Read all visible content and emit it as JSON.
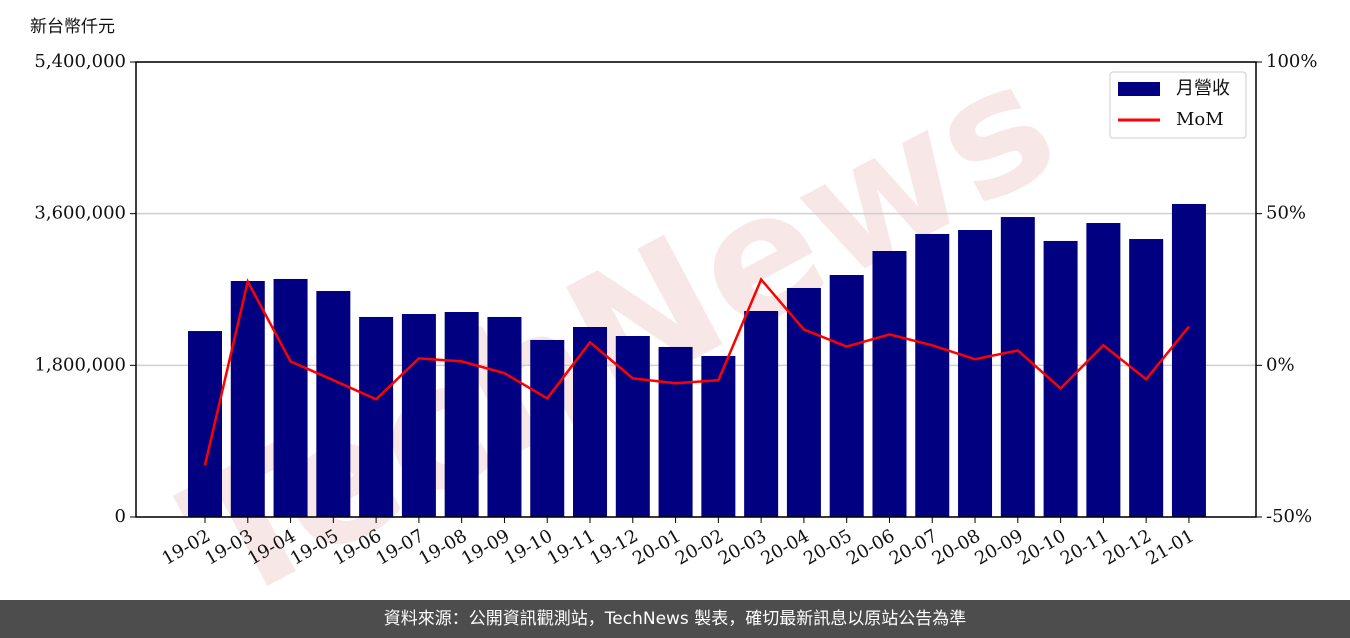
{
  "chart_data": {
    "type": "bar_line",
    "y_label": "新台幣仟元",
    "watermark": "TechNews",
    "categories": [
      "19-02",
      "19-03",
      "19-04",
      "19-05",
      "19-06",
      "19-07",
      "19-08",
      "19-09",
      "19-10",
      "19-11",
      "19-12",
      "20-01",
      "20-02",
      "20-03",
      "20-04",
      "20-05",
      "20-06",
      "20-07",
      "20-08",
      "20-09",
      "20-10",
      "20-11",
      "20-12",
      "21-01"
    ],
    "series": [
      {
        "name": "月營收",
        "type": "bar",
        "color": "#000080",
        "values": [
          2207000,
          2801000,
          2825000,
          2682000,
          2374000,
          2409000,
          2433000,
          2374000,
          2101000,
          2255000,
          2148000,
          2018000,
          1911000,
          2445000,
          2718000,
          2872000,
          3157000,
          3359000,
          3406000,
          3560000,
          3276000,
          3489000,
          3299000,
          3715000
        ]
      },
      {
        "name": "MoM",
        "type": "line",
        "axis": "y2",
        "color": "#ff0000",
        "values": [
          -32.9,
          27.6,
          1.3,
          -4.9,
          -11.2,
          2.3,
          1.3,
          -2.6,
          -10.9,
          7.6,
          -4.3,
          -5.9,
          -4.9,
          28.3,
          11.8,
          6.2,
          10.2,
          6.6,
          2.0,
          4.9,
          -7.6,
          6.6,
          -4.6,
          12.8
        ]
      }
    ],
    "ylim": [
      0,
      5400000
    ],
    "yticks": [
      0,
      {
        "value": 1800000,
        "label": "1,800,000"
      },
      {
        "value": 3600000,
        "label": "3,600,000"
      },
      {
        "value": 5400000,
        "label": "5,400,000"
      }
    ],
    "y2lim": [
      -50,
      100
    ],
    "y2ticks": [
      {
        "value": -50,
        "label": "-50%"
      },
      {
        "value": 0,
        "label": "0%"
      },
      {
        "value": 50,
        "label": "50%"
      },
      {
        "value": 100,
        "label": "100%"
      }
    ],
    "grid": true,
    "legend": "upper right",
    "footer": "資料來源：公開資訊觀測站，TechNews 製表，確切最新訊息以原站公告為準"
  }
}
